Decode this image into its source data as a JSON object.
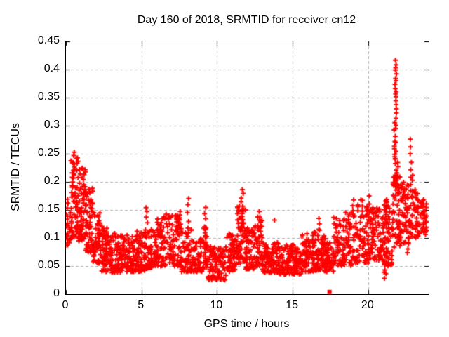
{
  "chart_data": {
    "type": "scatter",
    "title": "Day 160 of 2018, SRMTID for receiver cn12",
    "xlabel": "GPS time / hours",
    "ylabel": "SRMTID / TECUs",
    "xlim": [
      0,
      24
    ],
    "ylim": [
      0,
      0.45
    ],
    "grid": true,
    "legend": "none",
    "xticks": [
      {
        "v": 0,
        "label": "0"
      },
      {
        "v": 5,
        "label": "5"
      },
      {
        "v": 10,
        "label": "10"
      },
      {
        "v": 15,
        "label": "15"
      },
      {
        "v": 20,
        "label": "20"
      }
    ],
    "yticks": [
      {
        "v": 0,
        "label": "0"
      },
      {
        "v": 0.05,
        "label": "0.05"
      },
      {
        "v": 0.1,
        "label": "0.1"
      },
      {
        "v": 0.15,
        "label": "0.15"
      },
      {
        "v": 0.2,
        "label": "0.2"
      },
      {
        "v": 0.25,
        "label": "0.25"
      },
      {
        "v": 0.3,
        "label": "0.3"
      },
      {
        "v": 0.35,
        "label": "0.35"
      },
      {
        "v": 0.4,
        "label": "0.4"
      },
      {
        "v": 0.45,
        "label": "0.45"
      }
    ],
    "colors": {
      "marker": "#ff0000",
      "grid": "#b0b0b0",
      "axis": "#000000",
      "text": "#000000"
    },
    "marker": {
      "shape": "plus",
      "size": 7,
      "stroke": 2
    },
    "square_point": {
      "x": 17.44,
      "y": 0.004,
      "shape": "filled-square",
      "size": 6
    },
    "seed": 20180160,
    "bands": [
      {
        "t0": 0.0,
        "t1": 0.35,
        "n": 30,
        "lo": 0.085,
        "hi": 0.175,
        "bias": 1.2
      },
      {
        "t0": 0.35,
        "t1": 0.8,
        "n": 55,
        "lo": 0.1,
        "hi": 0.255,
        "bias": 1.45
      },
      {
        "t0": 0.8,
        "t1": 1.3,
        "n": 60,
        "lo": 0.095,
        "hi": 0.225,
        "bias": 1.5
      },
      {
        "t0": 1.3,
        "t1": 1.8,
        "n": 60,
        "lo": 0.075,
        "hi": 0.19,
        "bias": 1.5
      },
      {
        "t0": 1.8,
        "t1": 2.3,
        "n": 55,
        "lo": 0.055,
        "hi": 0.15,
        "bias": 1.45
      },
      {
        "t0": 2.3,
        "t1": 2.9,
        "n": 60,
        "lo": 0.04,
        "hi": 0.125,
        "bias": 1.4
      },
      {
        "t0": 2.9,
        "t1": 3.6,
        "n": 65,
        "lo": 0.038,
        "hi": 0.11,
        "bias": 1.35
      },
      {
        "t0": 3.6,
        "t1": 4.4,
        "n": 72,
        "lo": 0.04,
        "hi": 0.105,
        "bias": 1.35
      },
      {
        "t0": 4.4,
        "t1": 5.2,
        "n": 72,
        "lo": 0.04,
        "hi": 0.112,
        "bias": 1.35
      },
      {
        "t0": 5.2,
        "t1": 5.8,
        "n": 55,
        "lo": 0.045,
        "hi": 0.125,
        "bias": 1.35
      },
      {
        "t0": 5.8,
        "t1": 6.6,
        "n": 72,
        "lo": 0.05,
        "hi": 0.138,
        "bias": 1.3
      },
      {
        "t0": 6.6,
        "t1": 7.6,
        "n": 85,
        "lo": 0.05,
        "hi": 0.148,
        "bias": 1.45
      },
      {
        "t0": 7.6,
        "t1": 8.3,
        "n": 60,
        "lo": 0.04,
        "hi": 0.122,
        "bias": 1.45
      },
      {
        "t0": 8.3,
        "t1": 9.0,
        "n": 60,
        "lo": 0.04,
        "hi": 0.1,
        "bias": 1.35
      },
      {
        "t0": 9.0,
        "t1": 9.4,
        "n": 35,
        "lo": 0.045,
        "hi": 0.118,
        "bias": 1.35
      },
      {
        "t0": 9.4,
        "t1": 10.6,
        "n": 95,
        "lo": 0.025,
        "hi": 0.085,
        "bias": 1.25
      },
      {
        "t0": 10.6,
        "t1": 11.3,
        "n": 62,
        "lo": 0.04,
        "hi": 0.108,
        "bias": 1.35
      },
      {
        "t0": 11.3,
        "t1": 11.9,
        "n": 62,
        "lo": 0.055,
        "hi": 0.158,
        "bias": 1.3
      },
      {
        "t0": 11.9,
        "t1": 12.5,
        "n": 55,
        "lo": 0.045,
        "hi": 0.118,
        "bias": 1.35
      },
      {
        "t0": 12.5,
        "t1": 13.0,
        "n": 45,
        "lo": 0.05,
        "hi": 0.138,
        "bias": 1.45
      },
      {
        "t0": 13.0,
        "t1": 14.1,
        "n": 90,
        "lo": 0.038,
        "hi": 0.092,
        "bias": 1.3
      },
      {
        "t0": 14.1,
        "t1": 15.6,
        "n": 120,
        "lo": 0.035,
        "hi": 0.088,
        "bias": 1.3
      },
      {
        "t0": 15.6,
        "t1": 16.4,
        "n": 70,
        "lo": 0.04,
        "hi": 0.108,
        "bias": 1.35
      },
      {
        "t0": 16.4,
        "t1": 17.1,
        "n": 60,
        "lo": 0.042,
        "hi": 0.122,
        "bias": 1.45
      },
      {
        "t0": 17.1,
        "t1": 17.7,
        "n": 50,
        "lo": 0.04,
        "hi": 0.102,
        "bias": 1.3
      },
      {
        "t0": 17.7,
        "t1": 18.5,
        "n": 65,
        "lo": 0.05,
        "hi": 0.138,
        "bias": 1.4
      },
      {
        "t0": 18.5,
        "t1": 19.3,
        "n": 65,
        "lo": 0.05,
        "hi": 0.148,
        "bias": 1.45
      },
      {
        "t0": 19.3,
        "t1": 20.1,
        "n": 65,
        "lo": 0.055,
        "hi": 0.168,
        "bias": 1.55
      },
      {
        "t0": 20.1,
        "t1": 20.9,
        "n": 70,
        "lo": 0.06,
        "hi": 0.158,
        "bias": 1.45
      },
      {
        "t0": 20.9,
        "t1": 21.6,
        "n": 75,
        "lo": 0.05,
        "hi": 0.172,
        "bias": 1.3
      },
      {
        "t0": 21.6,
        "t1": 22.1,
        "n": 55,
        "lo": 0.08,
        "hi": 0.21,
        "bias": 1.15
      },
      {
        "t0": 22.1,
        "t1": 22.7,
        "n": 55,
        "lo": 0.09,
        "hi": 0.2,
        "bias": 1.15
      },
      {
        "t0": 22.7,
        "t1": 23.3,
        "n": 50,
        "lo": 0.1,
        "hi": 0.188,
        "bias": 1.15
      },
      {
        "t0": 23.3,
        "t1": 23.9,
        "n": 35,
        "lo": 0.105,
        "hi": 0.17,
        "bias": 1.1
      }
    ],
    "spikes": [
      {
        "x": 0.45,
        "y0": 0.2,
        "y1": 0.253,
        "n": 8,
        "jx": 0.12
      },
      {
        "x": 1.05,
        "y0": 0.17,
        "y1": 0.225,
        "n": 6,
        "jx": 0.15
      },
      {
        "x": 5.32,
        "y0": 0.105,
        "y1": 0.156,
        "n": 6,
        "jx": 0.07
      },
      {
        "x": 8.1,
        "y0": 0.13,
        "y1": 0.172,
        "n": 4,
        "jx": 0.07
      },
      {
        "x": 9.2,
        "y0": 0.1,
        "y1": 0.155,
        "n": 6,
        "jx": 0.09
      },
      {
        "x": 11.68,
        "y0": 0.12,
        "y1": 0.186,
        "n": 10,
        "jx": 0.1
      },
      {
        "x": 12.72,
        "y0": 0.115,
        "y1": 0.146,
        "n": 5,
        "jx": 0.09
      },
      {
        "x": 13.8,
        "y0": 0.13,
        "y1": 0.134,
        "n": 1,
        "jx": 0.01
      },
      {
        "x": 16.75,
        "y0": 0.115,
        "y1": 0.137,
        "n": 3,
        "jx": 0.09
      },
      {
        "x": 19.0,
        "y0": 0.14,
        "y1": 0.166,
        "n": 4,
        "jx": 0.16
      },
      {
        "x": 20.05,
        "y0": 0.15,
        "y1": 0.174,
        "n": 3,
        "jx": 0.13
      },
      {
        "x": 21.15,
        "y0": 0.03,
        "y1": 0.05,
        "n": 5,
        "jx": 0.22
      },
      {
        "x": 21.8,
        "y0": 0.4,
        "y1": 0.415,
        "n": 4,
        "jx": 0.07
      },
      {
        "x": 21.82,
        "y0": 0.362,
        "y1": 0.392,
        "n": 6,
        "jx": 0.06
      },
      {
        "x": 21.8,
        "y0": 0.345,
        "y1": 0.358,
        "n": 3,
        "jx": 0.06
      },
      {
        "x": 21.85,
        "y0": 0.322,
        "y1": 0.336,
        "n": 3,
        "jx": 0.05
      },
      {
        "x": 21.8,
        "y0": 0.295,
        "y1": 0.313,
        "n": 4,
        "jx": 0.06
      },
      {
        "x": 21.76,
        "y0": 0.282,
        "y1": 0.292,
        "n": 2,
        "jx": 0.05
      },
      {
        "x": 21.82,
        "y0": 0.24,
        "y1": 0.273,
        "n": 8,
        "jx": 0.09
      },
      {
        "x": 21.86,
        "y0": 0.19,
        "y1": 0.24,
        "n": 12,
        "jx": 0.12
      },
      {
        "x": 22.85,
        "y0": 0.21,
        "y1": 0.276,
        "n": 6,
        "jx": 0.1
      },
      {
        "x": 22.86,
        "y0": 0.185,
        "y1": 0.21,
        "n": 4,
        "jx": 0.09
      },
      {
        "x": 22.75,
        "y0": 0.072,
        "y1": 0.09,
        "n": 3,
        "jx": 0.16
      },
      {
        "x": 23.5,
        "y0": 0.125,
        "y1": 0.168,
        "n": 10,
        "jx": 0.3
      }
    ]
  }
}
